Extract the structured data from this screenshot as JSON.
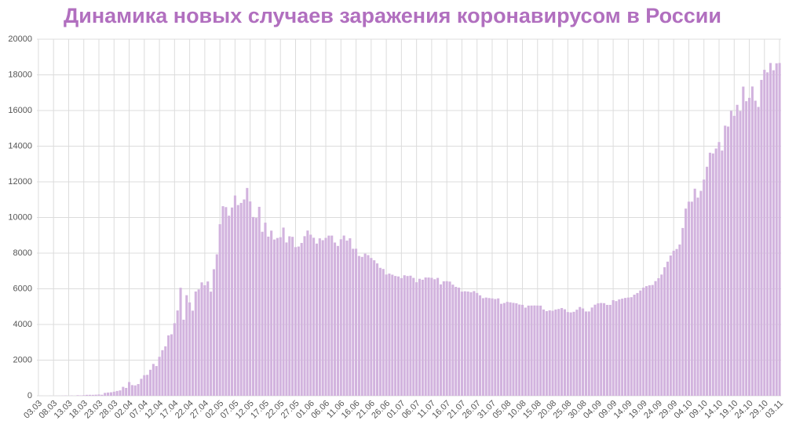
{
  "chart_data": {
    "type": "bar",
    "title": "Динамика новых случаев заражения коронавирусом в России",
    "color": "#d2b3de",
    "grid": true,
    "ylim": [
      0,
      20000
    ],
    "yticks": [
      0,
      2000,
      4000,
      6000,
      8000,
      10000,
      12000,
      14000,
      16000,
      18000,
      20000
    ],
    "categories": [
      "03.03",
      null,
      null,
      null,
      null,
      "08.03",
      null,
      null,
      null,
      null,
      "13.03",
      null,
      null,
      null,
      null,
      "18.03",
      null,
      null,
      null,
      null,
      "23.03",
      null,
      null,
      null,
      null,
      "28.03",
      null,
      null,
      null,
      null,
      "02.04",
      null,
      null,
      null,
      null,
      "07.04",
      null,
      null,
      null,
      null,
      "12.04",
      null,
      null,
      null,
      null,
      "17.04",
      null,
      null,
      null,
      null,
      "22.04",
      null,
      null,
      null,
      null,
      "27.04",
      null,
      null,
      null,
      null,
      "02.05",
      null,
      null,
      null,
      null,
      "07.05",
      null,
      null,
      null,
      null,
      "12.05",
      null,
      null,
      null,
      null,
      "17.05",
      null,
      null,
      null,
      null,
      "22.05",
      null,
      null,
      null,
      null,
      "27.05",
      null,
      null,
      null,
      null,
      "01.06",
      null,
      null,
      null,
      null,
      "06.06",
      null,
      null,
      null,
      null,
      "11.06",
      null,
      null,
      null,
      null,
      "16.06",
      null,
      null,
      null,
      null,
      "21.06",
      null,
      null,
      null,
      null,
      "26.06",
      null,
      null,
      null,
      null,
      "01.07",
      null,
      null,
      null,
      null,
      "06.07",
      null,
      null,
      null,
      null,
      "11.07",
      null,
      null,
      null,
      null,
      "16.07",
      null,
      null,
      null,
      null,
      "21.07",
      null,
      null,
      null,
      null,
      "26.07",
      null,
      null,
      null,
      null,
      "31.07",
      null,
      null,
      null,
      null,
      "05.08",
      null,
      null,
      null,
      null,
      "10.08",
      null,
      null,
      null,
      null,
      "15.08",
      null,
      null,
      null,
      null,
      "20.08",
      null,
      null,
      null,
      null,
      "25.08",
      null,
      null,
      null,
      null,
      "30.08",
      null,
      null,
      null,
      null,
      "04.09",
      null,
      null,
      null,
      null,
      "09.09",
      null,
      null,
      null,
      null,
      "14.09",
      null,
      null,
      null,
      null,
      "19.09",
      null,
      null,
      null,
      null,
      "24.09",
      null,
      null,
      null,
      null,
      "29.09",
      null,
      null,
      null,
      null,
      "04.10",
      null,
      null,
      null,
      null,
      "09.10",
      null,
      null,
      null,
      null,
      "14.10",
      null,
      null,
      null,
      null,
      "19.10",
      null,
      null,
      null,
      null,
      "24.10",
      null,
      null,
      null,
      null,
      "29.10",
      null,
      null,
      null,
      null,
      "03.11"
    ],
    "values": [
      0,
      1,
      0,
      0,
      3,
      0,
      3,
      4,
      8,
      14,
      4,
      14,
      4,
      30,
      21,
      33,
      52,
      54,
      53,
      61,
      71,
      57,
      163,
      182,
      196,
      228,
      270,
      302,
      501,
      440,
      771,
      601,
      582,
      658,
      954,
      1154,
      1175,
      1459,
      1786,
      1667,
      2186,
      2558,
      2774,
      3388,
      3448,
      4070,
      4785,
      6060,
      4268,
      5642,
      5236,
      4774,
      5849,
      5966,
      6361,
      6198,
      6411,
      5841,
      7099,
      7933,
      9623,
      10633,
      10581,
      10102,
      10559,
      11231,
      10699,
      10817,
      11012,
      11656,
      10899,
      10028,
      9974,
      10598,
      9200,
      9709,
      8926,
      9263,
      8764,
      8849,
      8894,
      9434,
      8599,
      8946,
      8915,
      8338,
      8371,
      8572,
      8952,
      9268,
      9035,
      8863,
      8536,
      8831,
      8726,
      8855,
      8984,
      8985,
      8595,
      8404,
      8779,
      8987,
      8706,
      8835,
      8246,
      8248,
      7843,
      7790,
      7972,
      7889,
      7728,
      7600,
      7425,
      7176,
      7113,
      6800,
      6852,
      6791,
      6719,
      6693,
      6600,
      6760,
      6718,
      6736,
      6611,
      6368,
      6562,
      6509,
      6635,
      6632,
      6615,
      6537,
      6611,
      6248,
      6422,
      6428,
      6406,
      6234,
      6109,
      6065,
      5842,
      5862,
      5848,
      5811,
      5871,
      5765,
      5635,
      5475,
      5509,
      5482,
      5462,
      5427,
      5462,
      5159,
      5204,
      5267,
      5241,
      5212,
      5189,
      5118,
      5102,
      4945,
      5058,
      5061,
      5065,
      5061,
      5057,
      4839,
      4748,
      4790,
      4767,
      4838,
      4870,
      4921,
      4852,
      4696,
      4676,
      4711,
      4829,
      4980,
      4897,
      4729,
      4729,
      4952,
      5110,
      5185,
      5205,
      5195,
      5099,
      5099,
      5363,
      5310,
      5405,
      5449,
      5488,
      5509,
      5529,
      5670,
      5762,
      5905,
      6065,
      6148,
      6196,
      6215,
      6431,
      6595,
      6800,
      7212,
      7523,
      7867,
      8135,
      8232,
      8485,
      9412,
      10499,
      10888,
      10888,
      11615,
      11115,
      11493,
      12126,
      12846,
      13634,
      13592,
      13868,
      14231,
      13754,
      15150,
      15099,
      15982,
      15700,
      16319,
      15971,
      17340,
      16521,
      16710,
      17347,
      16550,
      16202,
      17717,
      18283,
      18140,
      18665,
      18257,
      18648,
      18665
    ]
  }
}
